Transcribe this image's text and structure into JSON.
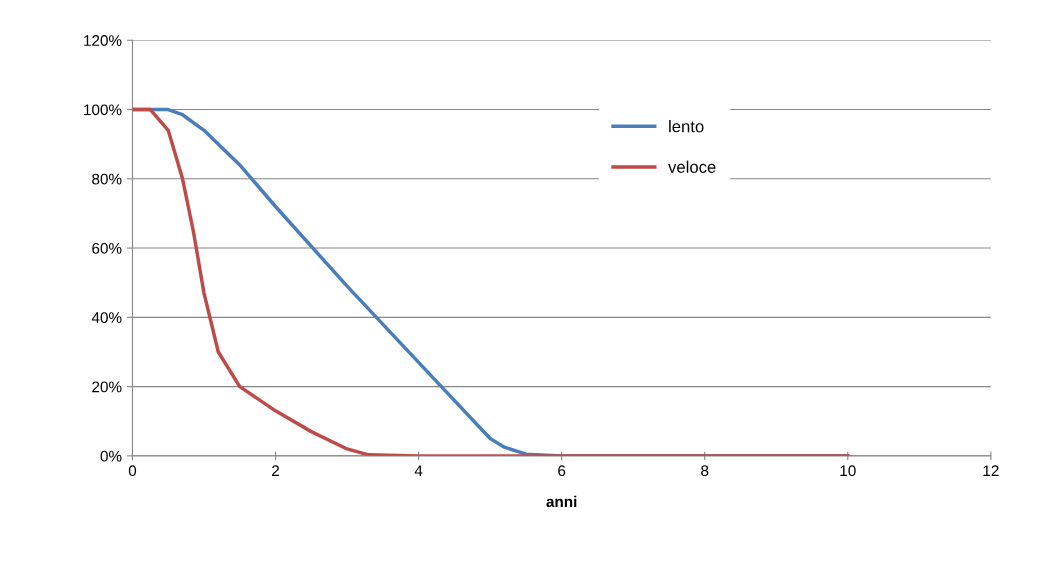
{
  "chart_data": {
    "type": "line",
    "xlabel": "anni",
    "xlim": [
      0,
      12
    ],
    "xticks": [
      0,
      2,
      4,
      6,
      8,
      10,
      12
    ],
    "ylim": [
      0,
      120
    ],
    "yticks": [
      {
        "value": 0,
        "label": "0%"
      },
      {
        "value": 20,
        "label": "20%"
      },
      {
        "value": 40,
        "label": "40%"
      },
      {
        "value": 60,
        "label": "60%"
      },
      {
        "value": 80,
        "label": "80%"
      },
      {
        "value": 100,
        "label": "100%"
      },
      {
        "value": 120,
        "label": "120%"
      }
    ],
    "grid": "y",
    "legend": "top",
    "marker": "none",
    "line_style": "solid",
    "series": [
      {
        "name": "lento",
        "color": "#4a7ebb",
        "x": [
          0,
          0.5,
          0.7,
          1,
          1.5,
          2,
          3,
          4,
          5,
          5.2,
          5.5,
          6,
          10
        ],
        "values": [
          100,
          100,
          98.5,
          94,
          84,
          72,
          49,
          27,
          5,
          2.5,
          0.5,
          0,
          0
        ]
      },
      {
        "name": "veloce",
        "color": "#be4b48",
        "x": [
          0,
          0.25,
          0.5,
          0.7,
          0.85,
          1,
          1.2,
          1.5,
          2,
          2.5,
          3,
          3.3,
          4,
          10
        ],
        "values": [
          100,
          100,
          94,
          80,
          65,
          47,
          30,
          20,
          13,
          7,
          2,
          0.3,
          0,
          0
        ]
      }
    ]
  }
}
